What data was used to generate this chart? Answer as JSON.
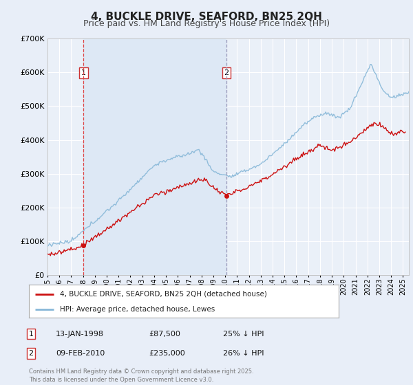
{
  "title": "4, BUCKLE DRIVE, SEAFORD, BN25 2QH",
  "subtitle": "Price paid vs. HM Land Registry's House Price Index (HPI)",
  "ylim": [
    0,
    700000
  ],
  "yticks": [
    0,
    100000,
    200000,
    300000,
    400000,
    500000,
    600000,
    700000
  ],
  "ytick_labels": [
    "£0",
    "£100K",
    "£200K",
    "£300K",
    "£400K",
    "£500K",
    "£600K",
    "£700K"
  ],
  "xlim_left": 1995.0,
  "xlim_right": 2025.5,
  "sale1_date": 1998.04,
  "sale1_price": 87500,
  "sale2_date": 2010.11,
  "sale2_price": 235000,
  "vline1_color": "#dd4444",
  "vline2_color": "#9999bb",
  "shade_color": "#dde8f5",
  "red_line_color": "#cc1111",
  "blue_line_color": "#88b8d8",
  "legend1": "4, BUCKLE DRIVE, SEAFORD, BN25 2QH (detached house)",
  "legend2": "HPI: Average price, detached house, Lewes",
  "annotation1_date": "13-JAN-1998",
  "annotation1_price": "£87,500",
  "annotation1_hpi": "25% ↓ HPI",
  "annotation2_date": "09-FEB-2010",
  "annotation2_price": "£235,000",
  "annotation2_hpi": "26% ↓ HPI",
  "footnote": "Contains HM Land Registry data © Crown copyright and database right 2025.\nThis data is licensed under the Open Government Licence v3.0.",
  "bg_color": "#e8eef8",
  "plot_bg": "#eaf0f8",
  "grid_color": "#ffffff",
  "title_fontsize": 11,
  "subtitle_fontsize": 9,
  "tick_fontsize": 8
}
